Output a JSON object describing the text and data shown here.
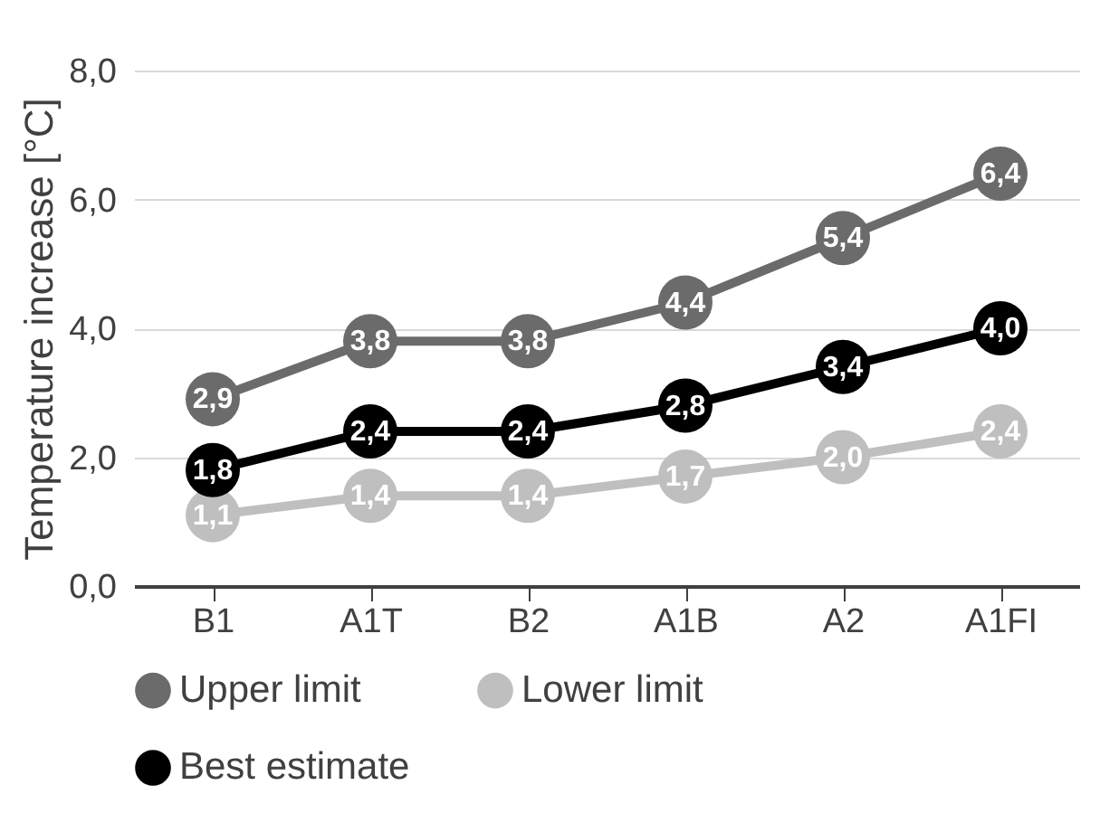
{
  "chart_data": {
    "type": "line",
    "ylabel": "Temperature increase [°C]",
    "categories": [
      "B1",
      "A1T",
      "B2",
      "A1B",
      "A2",
      "A1FI"
    ],
    "series": [
      {
        "name": "Upper limit",
        "color": "#6b6b6b",
        "values": [
          2.9,
          3.8,
          3.8,
          4.4,
          5.4,
          6.4
        ],
        "value_labels": [
          "2,9",
          "3,8",
          "3,8",
          "4,4",
          "5,4",
          "6,4"
        ]
      },
      {
        "name": "Lower limit",
        "color": "#bfbfbf",
        "values": [
          1.1,
          1.4,
          1.4,
          1.7,
          2.0,
          2.4
        ],
        "value_labels": [
          "1,1",
          "1,4",
          "1,4",
          "1,7",
          "2,0",
          "2,4"
        ]
      },
      {
        "name": "Best estimate",
        "color": "#000000",
        "values": [
          1.8,
          2.4,
          2.4,
          2.8,
          3.4,
          4.0
        ],
        "value_labels": [
          "1,8",
          "2,4",
          "2,4",
          "2,8",
          "3,4",
          "4,0"
        ]
      }
    ],
    "ylim": [
      0,
      8
    ],
    "yticks": [
      {
        "value": 0,
        "label": "0,0"
      },
      {
        "value": 2,
        "label": "2,0"
      },
      {
        "value": 4,
        "label": "4,0"
      },
      {
        "value": 6,
        "label": "6,0"
      },
      {
        "value": 8,
        "label": "8,0"
      }
    ],
    "grid": "y",
    "legend": "bottom",
    "marker": "circle",
    "line_style": "solid"
  }
}
